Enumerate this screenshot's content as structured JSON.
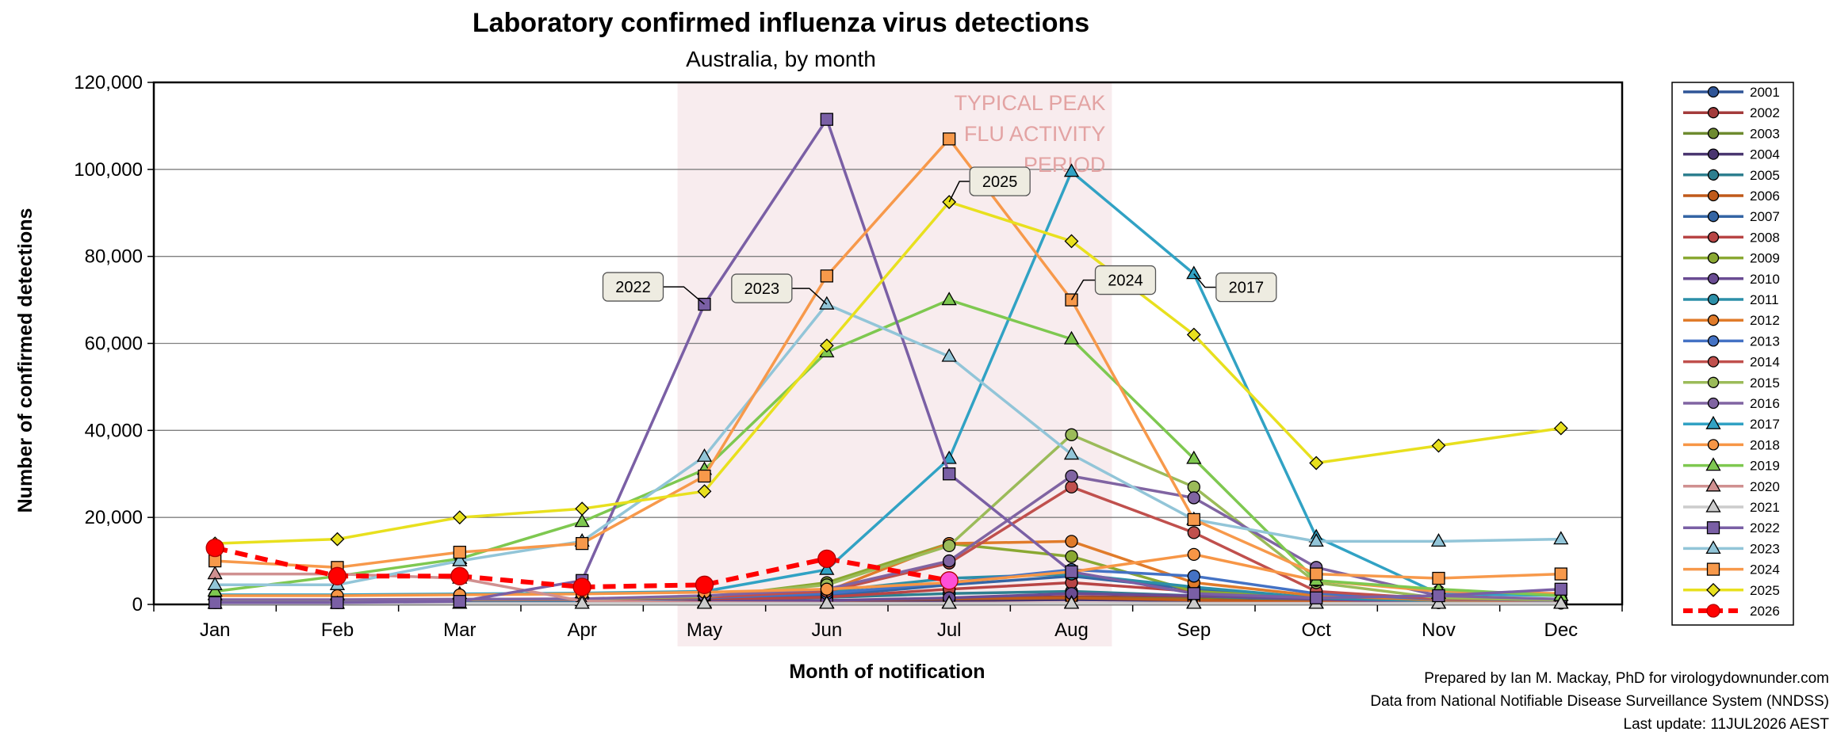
{
  "chart_data": {
    "type": "line",
    "title": "Laboratory confirmed influenza virus detections",
    "subtitle": "Australia, by month",
    "xlabel": "Month of notification",
    "ylabel": "Number of confirmed detections",
    "categories": [
      "Jan",
      "Feb",
      "Mar",
      "Apr",
      "May",
      "Jun",
      "Jul",
      "Aug",
      "Sep",
      "Oct",
      "Nov",
      "Dec"
    ],
    "ylim": [
      0,
      120000
    ],
    "yticks": [
      0,
      20000,
      40000,
      60000,
      80000,
      100000,
      120000
    ],
    "ytick_labels": [
      "0",
      "20,000",
      "40,000",
      "60,000",
      "80,000",
      "100,000",
      "120,000"
    ],
    "grid": true,
    "legend_position": "right",
    "peak_period": {
      "start_category": "May",
      "end_category": "Aug",
      "label_lines": [
        "TYPICAL PEAK",
        "FLU ACTIVITY",
        "PERIOD"
      ],
      "fill_color": "#f8ecee",
      "label_color": "#e3a3a3"
    },
    "callouts": [
      {
        "text": "2025",
        "series": "2025",
        "category": "Jul"
      },
      {
        "text": "2022",
        "series": "2022",
        "category": "May"
      },
      {
        "text": "2023",
        "series": "2023",
        "category": "Jun"
      },
      {
        "text": "2024",
        "series": "2024",
        "category": "Aug"
      },
      {
        "text": "2017",
        "series": "2017",
        "category": "Sep"
      }
    ],
    "series": [
      {
        "name": "2001",
        "color": "#2f5597",
        "marker": "circle",
        "values": [
          600,
          500,
          600,
          700,
          800,
          900,
          1000,
          1100,
          900,
          700,
          600,
          500
        ]
      },
      {
        "name": "2002",
        "color": "#a33b3b",
        "marker": "circle",
        "values": [
          500,
          400,
          500,
          600,
          700,
          900,
          1300,
          1800,
          1500,
          800,
          500,
          400
        ]
      },
      {
        "name": "2003",
        "color": "#6e8b2f",
        "marker": "circle",
        "values": [
          500,
          400,
          500,
          500,
          600,
          800,
          1200,
          1500,
          1200,
          700,
          500,
          400
        ]
      },
      {
        "name": "2004",
        "color": "#4a3670",
        "marker": "circle",
        "values": [
          500,
          400,
          500,
          500,
          600,
          700,
          900,
          1100,
          1000,
          700,
          500,
          400
        ]
      },
      {
        "name": "2005",
        "color": "#2e7f8f",
        "marker": "circle",
        "values": [
          500,
          500,
          600,
          700,
          1000,
          1600,
          2500,
          3000,
          2000,
          900,
          500,
          400
        ]
      },
      {
        "name": "2006",
        "color": "#c05a1a",
        "marker": "circle",
        "values": [
          400,
          400,
          500,
          600,
          700,
          900,
          1300,
          1500,
          1000,
          600,
          400,
          300
        ]
      },
      {
        "name": "2007",
        "color": "#3465a4",
        "marker": "circle",
        "values": [
          500,
          500,
          600,
          700,
          1000,
          2000,
          4500,
          6500,
          3500,
          1200,
          600,
          400
        ]
      },
      {
        "name": "2008",
        "color": "#b84545",
        "marker": "circle",
        "values": [
          600,
          600,
          700,
          800,
          1000,
          1700,
          3500,
          5000,
          3000,
          1200,
          600,
          500
        ]
      },
      {
        "name": "2009",
        "color": "#8aa832",
        "marker": "circle",
        "values": [
          600,
          600,
          600,
          700,
          1500,
          5000,
          14000,
          11000,
          3000,
          1500,
          800,
          600
        ]
      },
      {
        "name": "2010",
        "color": "#6a4c93",
        "marker": "circle",
        "values": [
          500,
          500,
          600,
          600,
          700,
          900,
          1500,
          2500,
          2000,
          1200,
          600,
          500
        ]
      },
      {
        "name": "2011",
        "color": "#2c8fa8",
        "marker": "circle",
        "values": [
          700,
          700,
          800,
          900,
          1500,
          3000,
          6000,
          7000,
          4000,
          1500,
          800,
          600
        ]
      },
      {
        "name": "2012",
        "color": "#e07b2a",
        "marker": "circle",
        "values": [
          1000,
          1000,
          1100,
          1200,
          1600,
          3000,
          14000,
          14500,
          5000,
          2000,
          1000,
          800
        ]
      },
      {
        "name": "2013",
        "color": "#4472c4",
        "marker": "circle",
        "values": [
          800,
          800,
          900,
          1000,
          1500,
          2500,
          5000,
          8000,
          6500,
          2500,
          1200,
          900
        ]
      },
      {
        "name": "2014",
        "color": "#c0504d",
        "marker": "circle",
        "values": [
          900,
          900,
          1000,
          1100,
          1600,
          3000,
          9500,
          27000,
          16500,
          3000,
          1300,
          1000
        ]
      },
      {
        "name": "2015",
        "color": "#9bbb59",
        "marker": "circle",
        "values": [
          1000,
          1000,
          1100,
          1200,
          1800,
          4500,
          13500,
          39000,
          27000,
          5000,
          1500,
          1000
        ]
      },
      {
        "name": "2016",
        "color": "#8064a2",
        "marker": "circle",
        "values": [
          1100,
          1100,
          1200,
          1300,
          2000,
          3500,
          10000,
          29500,
          24500,
          8500,
          2000,
          1200
        ]
      },
      {
        "name": "2017",
        "color": "#31a2c4",
        "marker": "triangle",
        "values": [
          2200,
          2200,
          2400,
          2600,
          3000,
          8000,
          33500,
          99500,
          76000,
          15500,
          2500,
          2000
        ]
      },
      {
        "name": "2018",
        "color": "#f79646",
        "marker": "circle",
        "values": [
          2000,
          2000,
          2200,
          2400,
          2800,
          3500,
          5000,
          7500,
          11500,
          5500,
          3000,
          2500
        ]
      },
      {
        "name": "2019",
        "color": "#7ec850",
        "marker": "triangle",
        "values": [
          3000,
          6500,
          10500,
          19000,
          31000,
          58000,
          70000,
          61000,
          33500,
          5500,
          3500,
          2000
        ]
      },
      {
        "name": "2020",
        "color": "#d09090",
        "marker": "triangle",
        "values": [
          7000,
          7000,
          6000,
          800,
          400,
          300,
          300,
          300,
          300,
          300,
          300,
          300
        ]
      },
      {
        "name": "2021",
        "color": "#cccccc",
        "marker": "triangle",
        "values": [
          200,
          200,
          200,
          200,
          200,
          200,
          200,
          200,
          200,
          200,
          200,
          200
        ]
      },
      {
        "name": "2022",
        "color": "#7a5fa5",
        "marker": "square",
        "values": [
          400,
          400,
          700,
          5500,
          69000,
          111500,
          30000,
          7500,
          2500,
          1500,
          2000,
          3500
        ]
      },
      {
        "name": "2023",
        "color": "#92c5d8",
        "marker": "triangle",
        "values": [
          4500,
          4500,
          10000,
          14500,
          34000,
          69000,
          57000,
          34500,
          19500,
          14500,
          14500,
          15000
        ]
      },
      {
        "name": "2024",
        "color": "#f7994b",
        "marker": "square",
        "values": [
          10000,
          8500,
          12000,
          14000,
          29500,
          75500,
          107000,
          70000,
          19500,
          7000,
          6000,
          7000
        ]
      },
      {
        "name": "2025",
        "color": "#e8e01e",
        "marker": "diamond",
        "values": [
          14000,
          15000,
          20000,
          22000,
          26000,
          59500,
          92500,
          83500,
          62000,
          32500,
          36500,
          40500
        ]
      },
      {
        "name": "2026",
        "color": "#ff0000",
        "marker": "circle-dashed",
        "values": [
          13000,
          6500,
          6500,
          4000,
          4500,
          10500,
          5500,
          null,
          null,
          null,
          null,
          null
        ]
      }
    ],
    "last_point_colors": {
      "2026": "#ff4fd8"
    }
  },
  "credits": [
    "Prepared by Ian M. Mackay, PhD for virologydownunder.com",
    "Data from National Notifiable Disease Surveillance System (NNDSS)",
    "Last update: 11JUL2026 AEST"
  ]
}
